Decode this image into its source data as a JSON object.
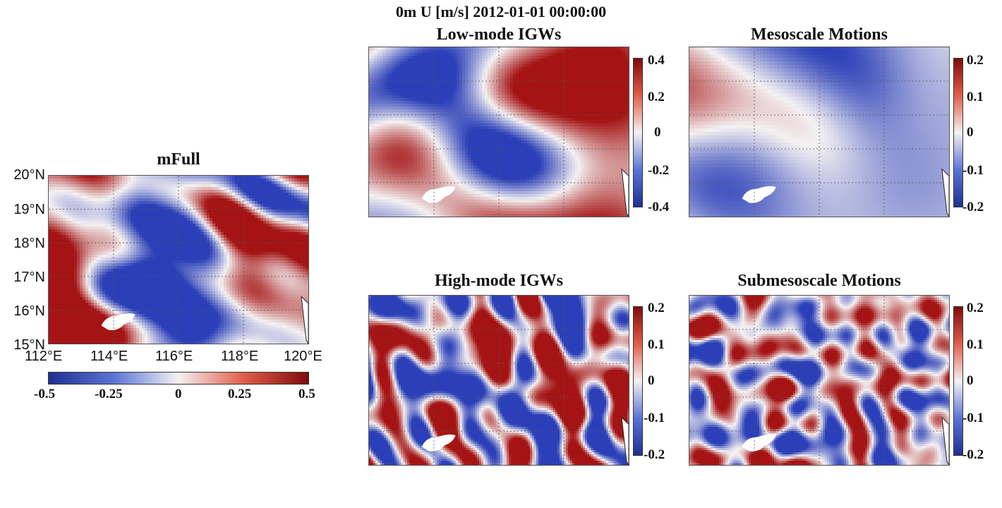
{
  "figure": {
    "title": "0m U [m/s] 2012-01-01 00:00:00"
  },
  "colors": {
    "negative": "#2b40b8",
    "neutral": "#f4f1f2",
    "positive": "#a51414",
    "land": "#ffffff",
    "grid": "#555555"
  },
  "chart_data": [
    {
      "type": "heatmap",
      "title": "mFull",
      "x_ticks": [
        "112°E",
        "114°E",
        "116°E",
        "118°E",
        "120°E"
      ],
      "y_ticks": [
        "15°N",
        "16°N",
        "17°N",
        "18°N",
        "19°N",
        "20°N"
      ],
      "xlim": [
        112,
        120
      ],
      "ylim": [
        15,
        20
      ],
      "colorbar": {
        "orientation": "horizontal",
        "range": [
          -0.5,
          0.5
        ],
        "ticks": [
          "-0.5",
          "-0.25",
          "0",
          "0.25",
          "0.5"
        ]
      },
      "grid": true
    },
    {
      "type": "heatmap",
      "title": "Low-mode IGWs",
      "xlim": [
        112,
        120
      ],
      "ylim": [
        15,
        20
      ],
      "colorbar": {
        "orientation": "vertical",
        "range": [
          -0.4,
          0.4
        ],
        "ticks": [
          "0.4",
          "0.2",
          "0",
          "-0.2",
          "-0.4"
        ]
      },
      "grid": true
    },
    {
      "type": "heatmap",
      "title": "Mesoscale Motions",
      "xlim": [
        112,
        120
      ],
      "ylim": [
        15,
        20
      ],
      "colorbar": {
        "orientation": "vertical",
        "range": [
          -0.2,
          0.2
        ],
        "ticks": [
          "0.2",
          "0.1",
          "0",
          "-0.1",
          "-0.2"
        ]
      },
      "grid": true
    },
    {
      "type": "heatmap",
      "title": "High-mode IGWs",
      "xlim": [
        112,
        120
      ],
      "ylim": [
        15,
        20
      ],
      "colorbar": {
        "orientation": "vertical",
        "range": [
          -0.2,
          0.2
        ],
        "ticks": [
          "0.2",
          "0.1",
          "0",
          "-0.1",
          "-0.2"
        ]
      },
      "grid": true
    },
    {
      "type": "heatmap",
      "title": "Submesoscale Motions",
      "xlim": [
        112,
        120
      ],
      "ylim": [
        15,
        20
      ],
      "colorbar": {
        "orientation": "vertical",
        "range": [
          -0.2,
          0.2
        ],
        "ticks": [
          "0.2",
          "0.1",
          "0",
          "-0.1",
          "-0.2"
        ]
      },
      "grid": true
    }
  ]
}
